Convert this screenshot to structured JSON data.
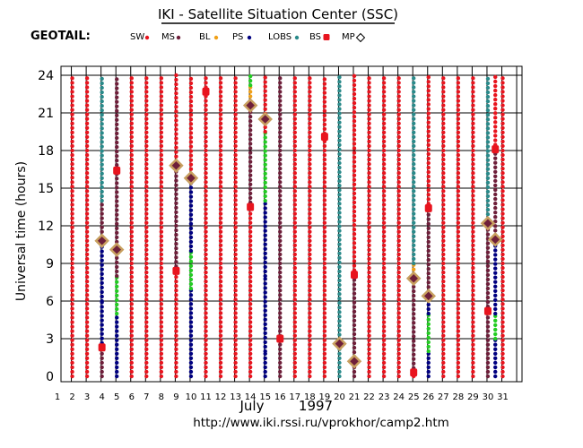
{
  "header": {
    "title": "IKI - Satellite Situation Center (SSC)",
    "satellite": "GEOTAIL:"
  },
  "legend": [
    {
      "key": "SW",
      "label": "SW",
      "color": "#e8141e",
      "marker": "dot"
    },
    {
      "key": "MS",
      "label": "MS",
      "color": "#6e1f3a",
      "marker": "dot"
    },
    {
      "key": "BL",
      "label": "BL",
      "color": "#f0a018",
      "marker": "dot"
    },
    {
      "key": "PS",
      "label": "PS",
      "color": "#000080",
      "marker": "dot"
    },
    {
      "key": "LOBS",
      "label": "LOBS",
      "color": "#2a8a8a",
      "marker": "dot"
    },
    {
      "key": "BS",
      "label": "BS",
      "color": "#e8141e",
      "marker": "red-square"
    },
    {
      "key": "MP",
      "label": "MP",
      "color": "#000000",
      "marker": "diamond"
    }
  ],
  "footer": {
    "month_label": "July",
    "year_label": "1997",
    "url": "http://www.iki.rssi.ru/vprokhor/camp2.htm"
  },
  "chart_data": {
    "type": "scatter",
    "ylabel": "Universal time (hours)",
    "xlabel": "July 1997",
    "x_range": [
      1,
      32
    ],
    "ylim": [
      0,
      24
    ],
    "x_ticks": [
      1,
      2,
      3,
      4,
      5,
      6,
      7,
      8,
      9,
      10,
      11,
      12,
      13,
      14,
      15,
      16,
      17,
      18,
      19,
      20,
      21,
      22,
      23,
      24,
      25,
      26,
      27,
      28,
      29,
      30,
      31
    ],
    "y_ticks": [
      0,
      3,
      6,
      9,
      12,
      15,
      18,
      21,
      24
    ],
    "grid": true,
    "colors": {
      "SW": "#e8141e",
      "MS": "#6e1f3a",
      "BL": "#f0a018",
      "PS": "#000080",
      "LOBS": "#2a8a8a",
      "GREEN": "#22cc22",
      "BS": "#e8141e",
      "MP_fill": "#6e1f3a",
      "MP_outline": "#c8a060"
    },
    "days": [
      {
        "day": 1.8,
        "segments": [
          [
            0,
            24,
            "SW"
          ]
        ]
      },
      {
        "day": 2.8,
        "segments": [
          [
            0,
            24,
            "SW"
          ]
        ]
      },
      {
        "day": 3.8,
        "segments": [
          [
            0,
            2.3,
            "MS"
          ],
          [
            2.3,
            6,
            "PS"
          ],
          [
            6,
            10.8,
            "PS"
          ],
          [
            10.8,
            14,
            "MS"
          ],
          [
            14,
            24,
            "LOBS"
          ]
        ]
      },
      {
        "day": 4.8,
        "segments": [
          [
            0,
            5,
            "PS"
          ],
          [
            5,
            8,
            "GREEN"
          ],
          [
            8,
            10,
            "MS"
          ],
          [
            10,
            24,
            "MS"
          ]
        ]
      },
      {
        "day": 5.8,
        "segments": [
          [
            0,
            24,
            "SW"
          ]
        ]
      },
      {
        "day": 6.8,
        "segments": [
          [
            0,
            24,
            "SW"
          ]
        ]
      },
      {
        "day": 7.8,
        "segments": [
          [
            0,
            24,
            "SW"
          ]
        ]
      },
      {
        "day": 8.8,
        "segments": [
          [
            0,
            8.4,
            "SW"
          ],
          [
            8.4,
            16.8,
            "MS"
          ],
          [
            16.8,
            24,
            "SW"
          ]
        ]
      },
      {
        "day": 9.8,
        "segments": [
          [
            0,
            7,
            "PS"
          ],
          [
            7,
            10,
            "GREEN"
          ],
          [
            10,
            15.8,
            "PS"
          ],
          [
            15.8,
            24,
            "SW"
          ]
        ]
      },
      {
        "day": 10.8,
        "segments": [
          [
            0,
            24,
            "SW"
          ]
        ]
      },
      {
        "day": 11.8,
        "segments": [
          [
            0,
            24,
            "SW"
          ]
        ]
      },
      {
        "day": 12.8,
        "segments": [
          [
            0,
            24,
            "SW"
          ]
        ]
      },
      {
        "day": 13.8,
        "segments": [
          [
            0,
            13.5,
            "SW"
          ],
          [
            13.5,
            21.6,
            "MS"
          ],
          [
            21.6,
            23.2,
            "BL"
          ],
          [
            23.2,
            24,
            "GREEN"
          ]
        ]
      },
      {
        "day": 14.8,
        "segments": [
          [
            0,
            2,
            "PS"
          ],
          [
            2,
            8,
            "PS"
          ],
          [
            8,
            14,
            "PS"
          ],
          [
            14,
            19.5,
            "GREEN"
          ],
          [
            19.5,
            24,
            "SW"
          ]
        ]
      },
      {
        "day": 15.8,
        "segments": [
          [
            0,
            24,
            "MS"
          ]
        ]
      },
      {
        "day": 16.8,
        "segments": [
          [
            0,
            24,
            "SW"
          ]
        ]
      },
      {
        "day": 17.8,
        "segments": [
          [
            0,
            24,
            "SW"
          ]
        ]
      },
      {
        "day": 18.8,
        "segments": [
          [
            0,
            19,
            "SW"
          ],
          [
            19,
            24,
            "SW"
          ]
        ]
      },
      {
        "day": 19.8,
        "segments": [
          [
            0,
            2.6,
            "LOBS"
          ],
          [
            2.6,
            24,
            "LOBS"
          ]
        ]
      },
      {
        "day": 20.8,
        "segments": [
          [
            0,
            1.2,
            "MS"
          ],
          [
            1.2,
            8.1,
            "MS"
          ],
          [
            8.1,
            24,
            "SW"
          ]
        ]
      },
      {
        "day": 21.8,
        "segments": [
          [
            0,
            24,
            "SW"
          ]
        ]
      },
      {
        "day": 22.8,
        "segments": [
          [
            0,
            24,
            "SW"
          ]
        ]
      },
      {
        "day": 23.8,
        "segments": [
          [
            0,
            24,
            "SW"
          ]
        ]
      },
      {
        "day": 24.8,
        "segments": [
          [
            0,
            0.3,
            "SW"
          ],
          [
            0.3,
            7.8,
            "MS"
          ],
          [
            7.8,
            9,
            "BL"
          ],
          [
            9,
            24,
            "LOBS"
          ]
        ]
      },
      {
        "day": 25.8,
        "segments": [
          [
            0,
            2,
            "PS"
          ],
          [
            2,
            5,
            "GREEN"
          ],
          [
            5,
            6.4,
            "PS"
          ],
          [
            6.4,
            13.4,
            "MS"
          ],
          [
            13.4,
            24,
            "SW"
          ]
        ]
      },
      {
        "day": 26.8,
        "segments": [
          [
            0,
            24,
            "SW"
          ]
        ]
      },
      {
        "day": 27.8,
        "segments": [
          [
            0,
            24,
            "SW"
          ]
        ]
      },
      {
        "day": 28.8,
        "segments": [
          [
            0,
            24,
            "SW"
          ]
        ]
      },
      {
        "day": 29.8,
        "segments": [
          [
            0,
            5.2,
            "MS"
          ],
          [
            5.2,
            12.2,
            "MS"
          ],
          [
            12.2,
            24,
            "LOBS"
          ]
        ]
      },
      {
        "day": 30.3,
        "segments": [
          [
            0,
            3,
            "PS"
          ],
          [
            3,
            5,
            "GREEN"
          ],
          [
            5,
            10.9,
            "PS"
          ],
          [
            10.9,
            18.1,
            "MS"
          ],
          [
            18.1,
            24,
            "SW"
          ]
        ]
      },
      {
        "day": 30.8,
        "segments": [
          [
            0,
            24,
            "SW"
          ]
        ]
      }
    ],
    "bs_points": [
      {
        "day": 3.8,
        "hour": 2.3
      },
      {
        "day": 4.8,
        "hour": 16.4
      },
      {
        "day": 8.8,
        "hour": 8.4
      },
      {
        "day": 10.8,
        "hour": 22.7
      },
      {
        "day": 13.8,
        "hour": 13.5
      },
      {
        "day": 15.8,
        "hour": 3.0
      },
      {
        "day": 18.8,
        "hour": 19.1
      },
      {
        "day": 20.8,
        "hour": 8.1
      },
      {
        "day": 24.8,
        "hour": 0.3
      },
      {
        "day": 25.8,
        "hour": 13.4
      },
      {
        "day": 29.8,
        "hour": 5.2
      },
      {
        "day": 30.3,
        "hour": 18.1
      }
    ],
    "mp_points": [
      {
        "day": 3.8,
        "hour": 10.8
      },
      {
        "day": 4.8,
        "hour": 10.1
      },
      {
        "day": 8.8,
        "hour": 16.8
      },
      {
        "day": 9.8,
        "hour": 15.8
      },
      {
        "day": 13.8,
        "hour": 21.6
      },
      {
        "day": 14.8,
        "hour": 20.5
      },
      {
        "day": 19.8,
        "hour": 2.6
      },
      {
        "day": 20.8,
        "hour": 1.2
      },
      {
        "day": 24.8,
        "hour": 7.8
      },
      {
        "day": 25.8,
        "hour": 6.4
      },
      {
        "day": 29.8,
        "hour": 12.2
      },
      {
        "day": 30.3,
        "hour": 10.9
      }
    ]
  }
}
